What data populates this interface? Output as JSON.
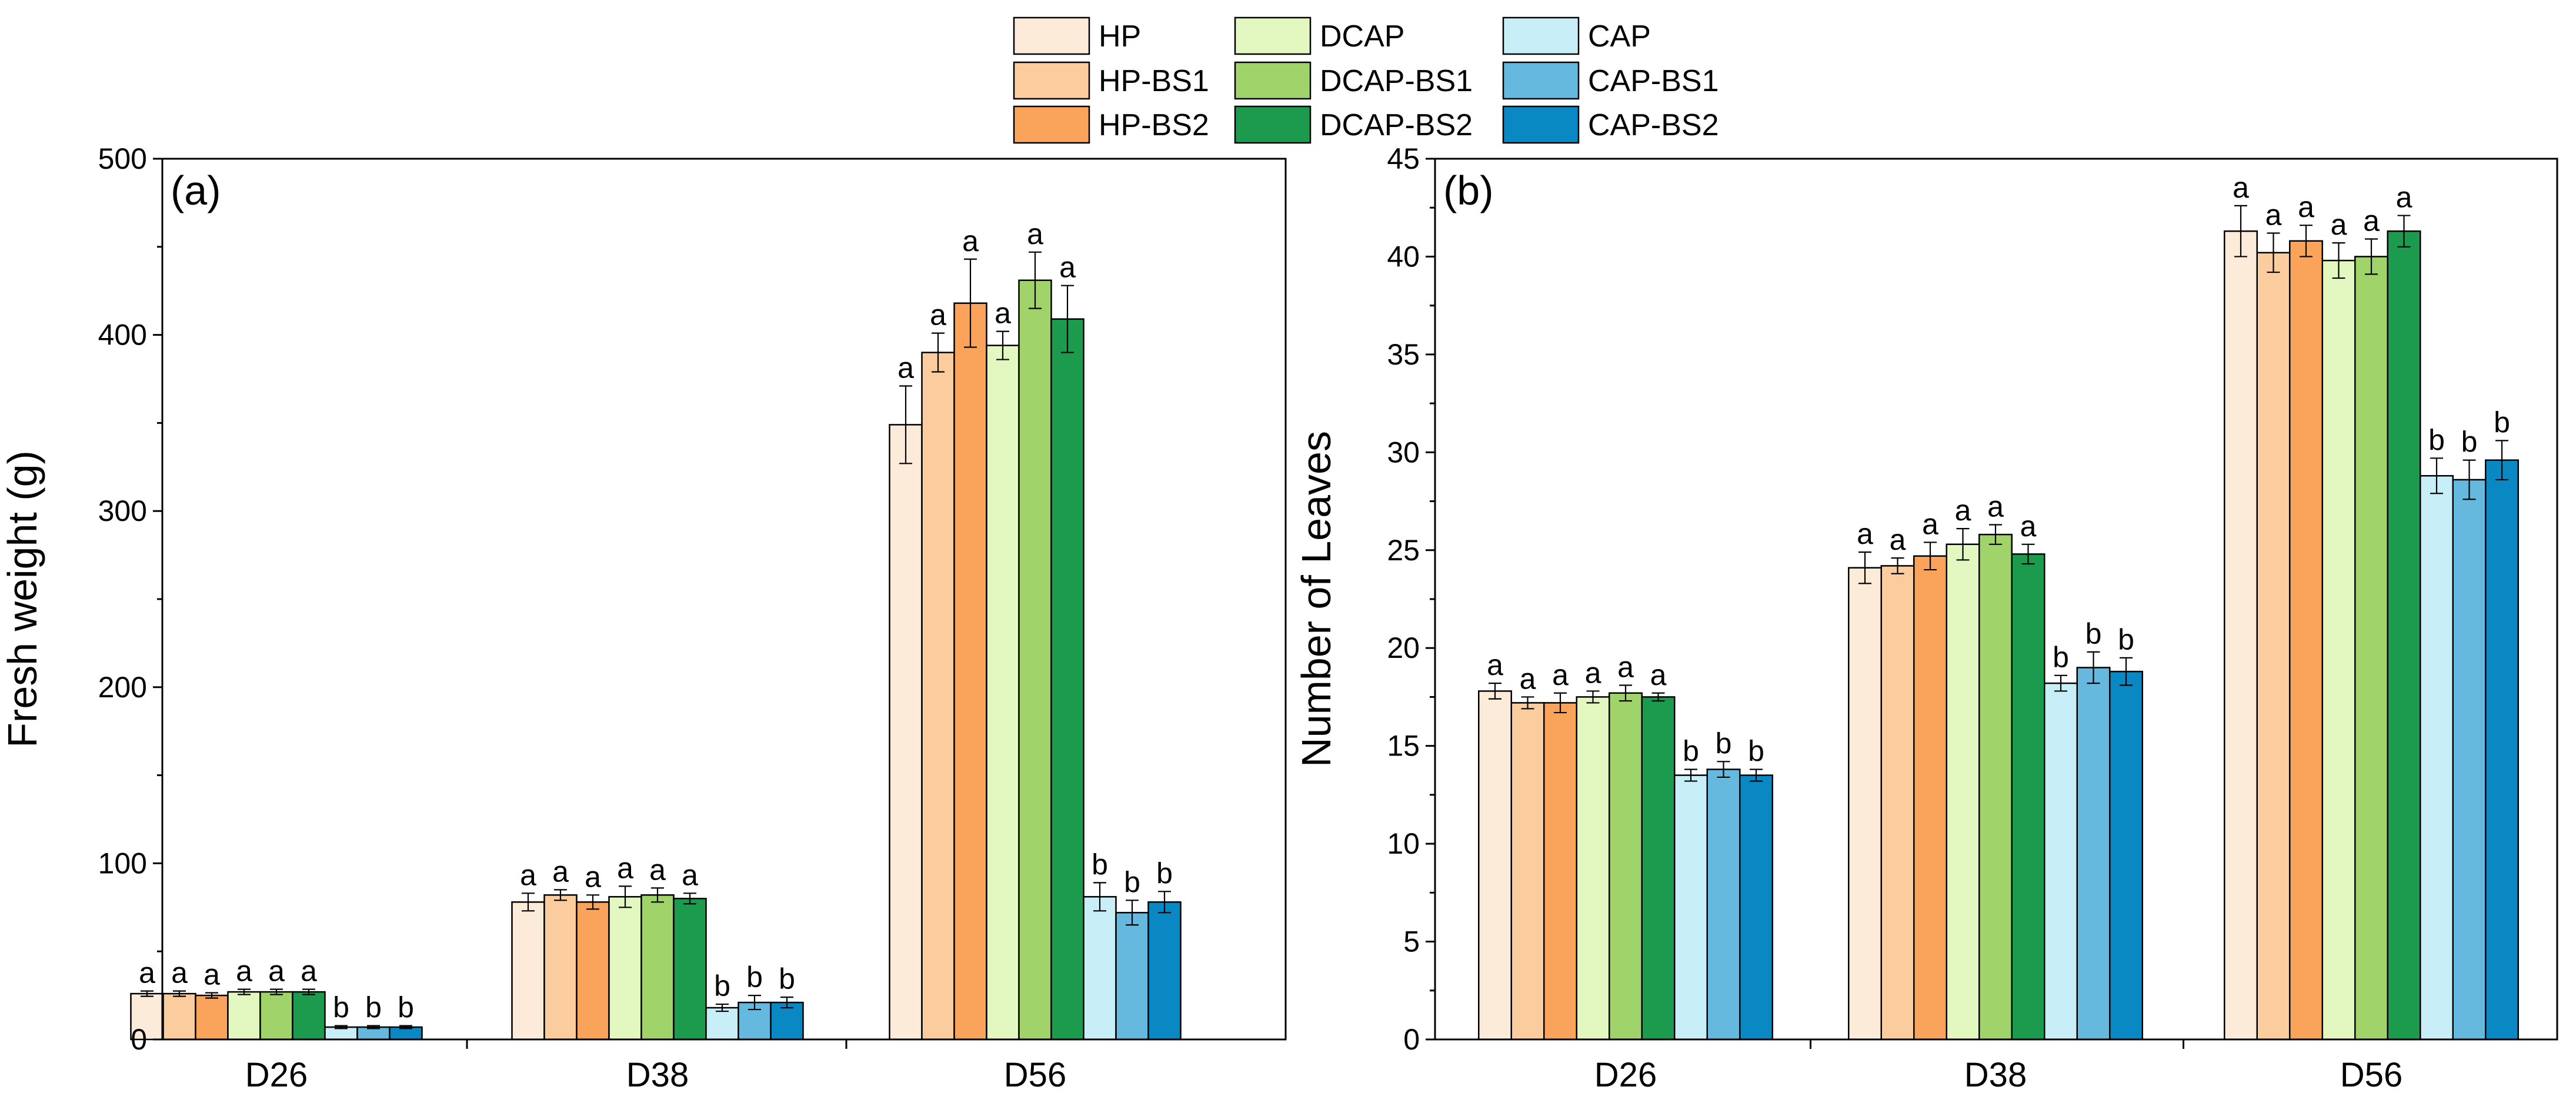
{
  "chart_data": [
    {
      "type": "bar",
      "panel_label": "(a)",
      "title": "",
      "xlabel": "",
      "ylabel": "Fresh weight (g)",
      "ylim": [
        0,
        500
      ],
      "yticks": [
        0,
        100,
        200,
        300,
        400,
        500
      ],
      "grid": false,
      "categories": [
        "D26",
        "D38",
        "D56"
      ],
      "series": [
        {
          "name": "HP",
          "color": "#FDEBD9",
          "values": [
            26,
            78,
            349
          ],
          "errors": [
            1.5,
            5,
            22
          ],
          "letters": [
            "a",
            "a",
            "a"
          ]
        },
        {
          "name": "HP-BS1",
          "color": "#FBCC9E",
          "values": [
            26,
            82,
            390
          ],
          "errors": [
            1.5,
            3,
            11
          ],
          "letters": [
            "a",
            "a",
            "a"
          ]
        },
        {
          "name": "HP-BS2",
          "color": "#F9A45A",
          "values": [
            25,
            78,
            418
          ],
          "errors": [
            1.5,
            4,
            25
          ],
          "letters": [
            "a",
            "a",
            "a"
          ]
        },
        {
          "name": "DCAP",
          "color": "#E3F8C0",
          "values": [
            27,
            81,
            394
          ],
          "errors": [
            1.5,
            6,
            8
          ],
          "letters": [
            "a",
            "a",
            "a"
          ]
        },
        {
          "name": "DCAP-BS1",
          "color": "#A0D36A",
          "values": [
            27,
            82,
            431
          ],
          "errors": [
            1.5,
            4,
            16
          ],
          "letters": [
            "a",
            "a",
            "a"
          ]
        },
        {
          "name": "DCAP-BS2",
          "color": "#1C9A4E",
          "values": [
            27,
            80,
            409
          ],
          "errors": [
            1.5,
            3,
            19
          ],
          "letters": [
            "a",
            "a",
            "a"
          ]
        },
        {
          "name": "CAP",
          "color": "#C8EEF8",
          "values": [
            7,
            18,
            81
          ],
          "errors": [
            0.8,
            2,
            8
          ],
          "letters": [
            "b",
            "b",
            "b"
          ]
        },
        {
          "name": "CAP-BS1",
          "color": "#65B9DF",
          "values": [
            7,
            21,
            72
          ],
          "errors": [
            0.8,
            4,
            7
          ],
          "letters": [
            "b",
            "b",
            "b"
          ]
        },
        {
          "name": "CAP-BS2",
          "color": "#0A88C4",
          "values": [
            7,
            21,
            78
          ],
          "errors": [
            0.8,
            3,
            6
          ],
          "letters": [
            "b",
            "b",
            "b"
          ]
        }
      ]
    },
    {
      "type": "bar",
      "panel_label": "(b)",
      "title": "",
      "xlabel": "",
      "ylabel": "Number of Leaves",
      "ylim": [
        0,
        45
      ],
      "yticks": [
        0,
        5,
        10,
        15,
        20,
        25,
        30,
        35,
        40,
        45
      ],
      "grid": false,
      "categories": [
        "D26",
        "D38",
        "D56"
      ],
      "series": [
        {
          "name": "HP",
          "color": "#FDEBD9",
          "values": [
            17.8,
            24.1,
            41.3
          ],
          "errors": [
            0.4,
            0.8,
            1.3
          ],
          "letters": [
            "a",
            "a",
            "a"
          ]
        },
        {
          "name": "HP-BS1",
          "color": "#FBCC9E",
          "values": [
            17.2,
            24.2,
            40.2
          ],
          "errors": [
            0.3,
            0.4,
            1.0
          ],
          "letters": [
            "a",
            "a",
            "a"
          ]
        },
        {
          "name": "HP-BS2",
          "color": "#F9A45A",
          "values": [
            17.2,
            24.7,
            40.8
          ],
          "errors": [
            0.5,
            0.7,
            0.8
          ],
          "letters": [
            "a",
            "a",
            "a"
          ]
        },
        {
          "name": "DCAP",
          "color": "#E3F8C0",
          "values": [
            17.5,
            25.3,
            39.8
          ],
          "errors": [
            0.3,
            0.8,
            0.9
          ],
          "letters": [
            "a",
            "a",
            "a"
          ]
        },
        {
          "name": "DCAP-BS1",
          "color": "#A0D36A",
          "values": [
            17.7,
            25.8,
            40.0
          ],
          "errors": [
            0.4,
            0.5,
            0.9
          ],
          "letters": [
            "a",
            "a",
            "a"
          ]
        },
        {
          "name": "DCAP-BS2",
          "color": "#1C9A4E",
          "values": [
            17.5,
            24.8,
            41.3
          ],
          "errors": [
            0.2,
            0.5,
            0.8
          ],
          "letters": [
            "a",
            "a",
            "a"
          ]
        },
        {
          "name": "CAP",
          "color": "#C8EEF8",
          "values": [
            13.5,
            18.2,
            28.8
          ],
          "errors": [
            0.3,
            0.4,
            0.9
          ],
          "letters": [
            "b",
            "b",
            "b"
          ]
        },
        {
          "name": "CAP-BS1",
          "color": "#65B9DF",
          "values": [
            13.8,
            19.0,
            28.6
          ],
          "errors": [
            0.4,
            0.8,
            1.0
          ],
          "letters": [
            "b",
            "b",
            "b"
          ]
        },
        {
          "name": "CAP-BS2",
          "color": "#0A88C4",
          "values": [
            13.5,
            18.8,
            29.6
          ],
          "errors": [
            0.3,
            0.7,
            1.0
          ],
          "letters": [
            "b",
            "b",
            "b"
          ]
        }
      ]
    }
  ],
  "legend": {
    "placement": "top-center",
    "entries": [
      "HP",
      "HP-BS1",
      "HP-BS2",
      "DCAP",
      "DCAP-BS1",
      "DCAP-BS2",
      "CAP",
      "CAP-BS1",
      "CAP-BS2"
    ]
  }
}
